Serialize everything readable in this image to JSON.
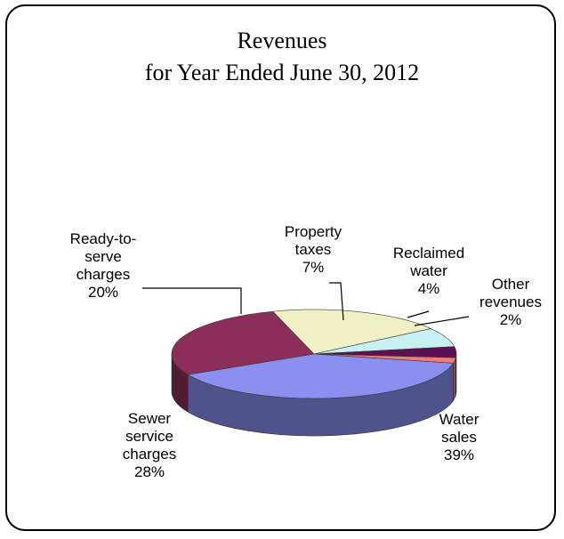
{
  "chart_data": {
    "type": "pie",
    "title": "Revenues",
    "subtitle": "for Year Ended June 30, 2012",
    "slices": [
      {
        "label": "Water sales",
        "label_lines": [
          "Water",
          "sales"
        ],
        "value": 39,
        "value_label": "39%",
        "color": "#8a8ff0"
      },
      {
        "label": "Sewer service charges",
        "label_lines": [
          "Sewer",
          "service",
          "charges"
        ],
        "value": 28,
        "value_label": "28%",
        "color": "#8b2f5a"
      },
      {
        "label": "Ready-to-serve charges",
        "label_lines": [
          "Ready-to-",
          "serve",
          "charges"
        ],
        "value": 20,
        "value_label": "20%",
        "color": "#f1f0c4"
      },
      {
        "label": "Property taxes",
        "label_lines": [
          "Property",
          "taxes"
        ],
        "value": 7,
        "value_label": "7%",
        "color": "#c6f0f2"
      },
      {
        "label": "Reclaimed water",
        "label_lines": [
          "Reclaimed",
          "water"
        ],
        "value": 4,
        "value_label": "4%",
        "color": "#5a1052"
      },
      {
        "label": "Other revenues",
        "label_lines": [
          "Other",
          "revenues"
        ],
        "value": 2,
        "value_label": "2%",
        "color": "#f07a78"
      }
    ],
    "legend": "none"
  }
}
